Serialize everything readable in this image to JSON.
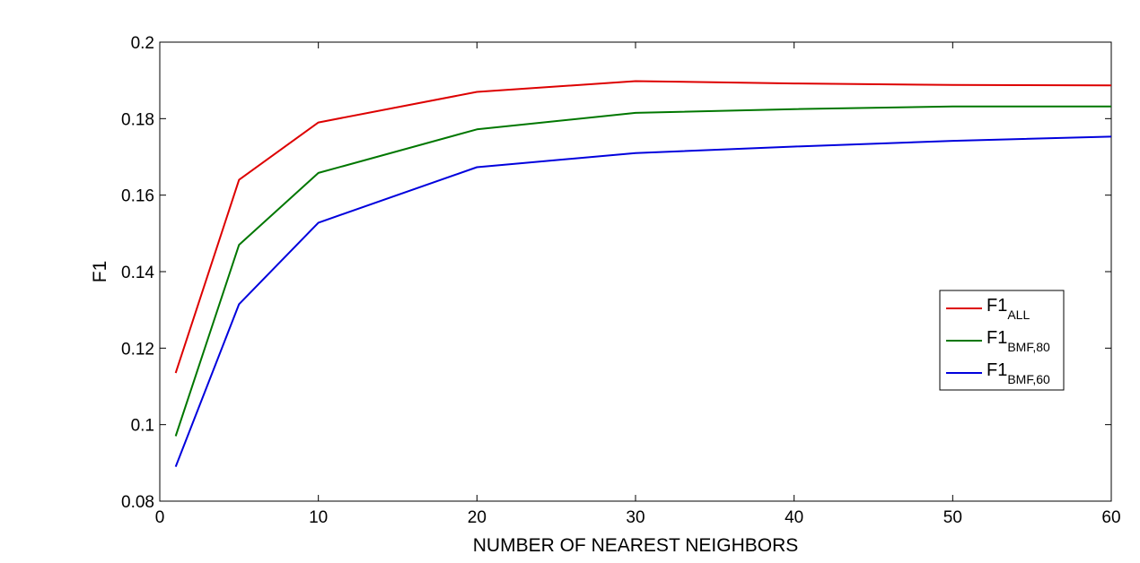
{
  "chart_data": {
    "type": "line",
    "xlabel": "NUMBER OF NEAREST NEIGHBORS",
    "ylabel": "F1",
    "xlim": [
      0,
      60
    ],
    "ylim": [
      0.08,
      0.2
    ],
    "xticks": [
      0,
      10,
      20,
      30,
      40,
      50,
      60
    ],
    "xtick_labels": [
      "0",
      "10",
      "20",
      "30",
      "40",
      "50",
      "60"
    ],
    "yticks": [
      0.08,
      0.1,
      0.12,
      0.14,
      0.16,
      0.18,
      0.2
    ],
    "ytick_labels": [
      "0.08",
      "0.1",
      "0.12",
      "0.14",
      "0.16",
      "0.18",
      "0.2"
    ],
    "grid": false,
    "legend_position": "right",
    "x": [
      1,
      5,
      10,
      20,
      30,
      40,
      50,
      60
    ],
    "series": [
      {
        "name_base": "F1",
        "name_sub": "ALL",
        "color": "#dd0000",
        "values": [
          0.1135,
          0.164,
          0.179,
          0.187,
          0.1898,
          0.1892,
          0.1888,
          0.1887
        ]
      },
      {
        "name_base": "F1",
        "name_sub": "BMF,80",
        "color": "#007700",
        "values": [
          0.097,
          0.147,
          0.1658,
          0.1772,
          0.1815,
          0.1825,
          0.1832,
          0.1832
        ]
      },
      {
        "name_base": "F1",
        "name_sub": "BMF,60",
        "color": "#0000dd",
        "values": [
          0.089,
          0.1315,
          0.1528,
          0.1673,
          0.171,
          0.1727,
          0.1742,
          0.1753
        ]
      }
    ]
  }
}
